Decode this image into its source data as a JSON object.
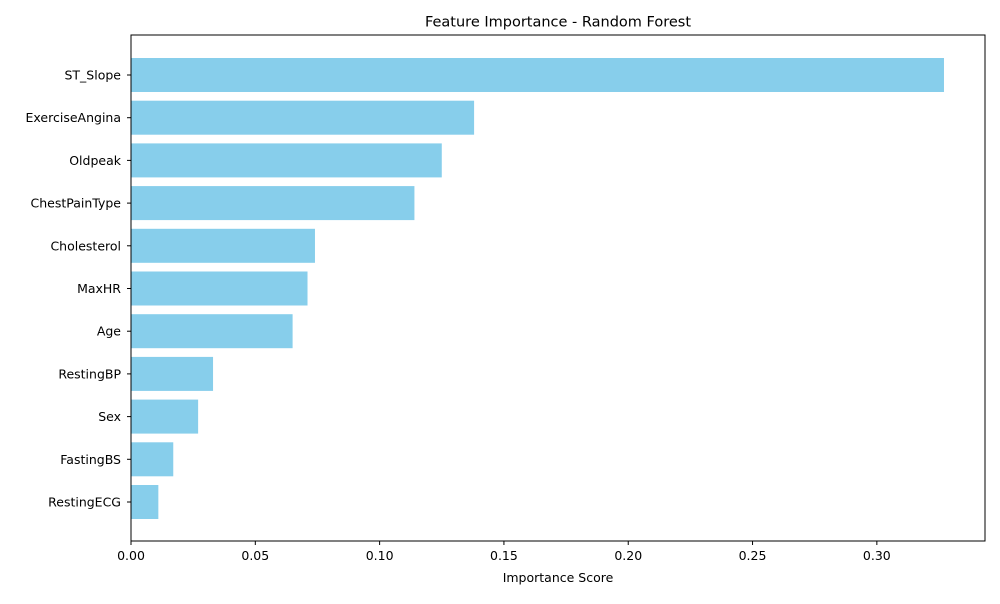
{
  "chart_data": {
    "type": "bar",
    "orientation": "horizontal",
    "title": "Feature Importance - Random Forest",
    "xlabel": "Importance Score",
    "ylabel": "",
    "categories": [
      "ST_Slope",
      "ExerciseAngina",
      "Oldpeak",
      "ChestPainType",
      "Cholesterol",
      "MaxHR",
      "Age",
      "RestingBP",
      "Sex",
      "FastingBS",
      "RestingECG"
    ],
    "values": [
      0.327,
      0.138,
      0.125,
      0.114,
      0.074,
      0.071,
      0.065,
      0.033,
      0.027,
      0.017,
      0.011
    ],
    "xlim": [
      0,
      0.3435
    ],
    "xticks": [
      0.0,
      0.05,
      0.1,
      0.15,
      0.2,
      0.25,
      0.3
    ],
    "xtick_labels": [
      "0.00",
      "0.05",
      "0.10",
      "0.15",
      "0.20",
      "0.25",
      "0.30"
    ],
    "bar_color": "#87ceeb",
    "grid": false,
    "legend": "none"
  }
}
